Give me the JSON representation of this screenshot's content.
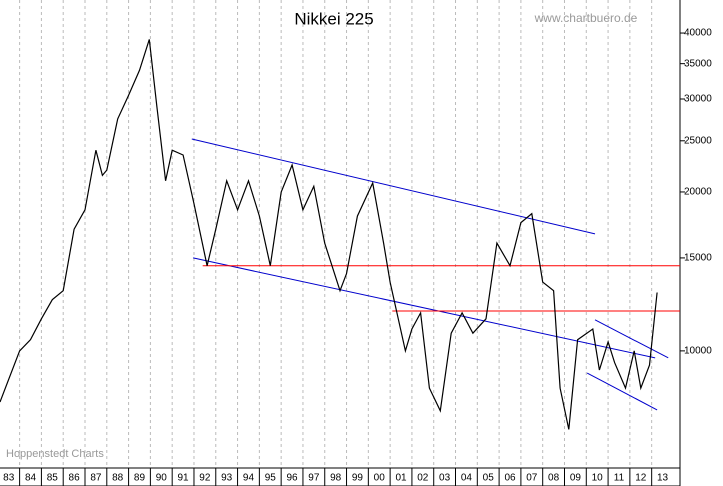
{
  "chart_data": {
    "type": "line",
    "title": "Nikkei 225",
    "source": "www.chartbuero.de",
    "credit": "Hoppenstedt Charts",
    "log_scale": true,
    "grid": true,
    "xlim": [
      1983.1,
      2014.3
    ],
    "ylim": [
      6000,
      46200
    ],
    "yticks": [
      10000,
      15000,
      20000,
      25000,
      30000,
      35000,
      40000
    ],
    "xticks": [
      {
        "value": 1983,
        "label": "83"
      },
      {
        "value": 1984,
        "label": "84"
      },
      {
        "value": 1985,
        "label": "85"
      },
      {
        "value": 1986,
        "label": "86"
      },
      {
        "value": 1987,
        "label": "87"
      },
      {
        "value": 1988,
        "label": "88"
      },
      {
        "value": 1989,
        "label": "89"
      },
      {
        "value": 1990,
        "label": "90"
      },
      {
        "value": 1991,
        "label": "91"
      },
      {
        "value": 1992,
        "label": "92"
      },
      {
        "value": 1993,
        "label": "93"
      },
      {
        "value": 1994,
        "label": "94"
      },
      {
        "value": 1995,
        "label": "95"
      },
      {
        "value": 1996,
        "label": "96"
      },
      {
        "value": 1997,
        "label": "97"
      },
      {
        "value": 1998,
        "label": "98"
      },
      {
        "value": 1999,
        "label": "99"
      },
      {
        "value": 2000,
        "label": "00"
      },
      {
        "value": 2001,
        "label": "01"
      },
      {
        "value": 2002,
        "label": "02"
      },
      {
        "value": 2003,
        "label": "03"
      },
      {
        "value": 2004,
        "label": "04"
      },
      {
        "value": 2005,
        "label": "05"
      },
      {
        "value": 2006,
        "label": "06"
      },
      {
        "value": 2007,
        "label": "07"
      },
      {
        "value": 2008,
        "label": "08"
      },
      {
        "value": 2009,
        "label": "09"
      },
      {
        "value": 2010,
        "label": "10"
      },
      {
        "value": 2011,
        "label": "11"
      },
      {
        "value": 2012,
        "label": "12"
      },
      {
        "value": 2013,
        "label": "13"
      }
    ],
    "series": [
      {
        "color": "#000000",
        "x": [
          1983.1,
          1984.0,
          1984.5,
          1985.0,
          1985.5,
          1986.0,
          1986.5,
          1987.0,
          1987.5,
          1987.8,
          1988.0,
          1988.5,
          1989.0,
          1989.5,
          1989.95,
          1990.3,
          1990.7,
          1991.0,
          1991.5,
          1992.0,
          1992.6,
          1993.0,
          1993.5,
          1994.0,
          1994.5,
          1995.0,
          1995.5,
          1996.0,
          1996.5,
          1997.0,
          1997.5,
          1998.0,
          1998.7,
          1999.0,
          1999.5,
          2000.2,
          2000.7,
          2001.0,
          2001.7,
          2002.0,
          2002.4,
          2002.8,
          2003.3,
          2003.8,
          2004.3,
          2004.8,
          2005.4,
          2005.9,
          2006.5,
          2007.0,
          2007.5,
          2008.0,
          2008.5,
          2008.8,
          2009.2,
          2009.6,
          2010.3,
          2010.6,
          2011.0,
          2011.3,
          2011.8,
          2012.2,
          2012.5,
          2012.9,
          2013.25
        ],
        "values": [
          8000,
          10000,
          10500,
          11500,
          12500,
          13000,
          17000,
          18500,
          24000,
          21500,
          22000,
          27500,
          30500,
          34000,
          38900,
          29000,
          21000,
          24000,
          23500,
          19000,
          14500,
          17000,
          21000,
          18500,
          21000,
          18000,
          14500,
          20000,
          22500,
          18500,
          20500,
          16000,
          13000,
          14000,
          18000,
          20800,
          16000,
          13500,
          10000,
          11000,
          11800,
          8500,
          7700,
          10800,
          11800,
          10800,
          11500,
          16000,
          14500,
          17500,
          18200,
          13500,
          13000,
          8500,
          7100,
          10500,
          11000,
          9200,
          10400,
          9500,
          8500,
          10000,
          8500,
          9400,
          12900
        ]
      }
    ],
    "trendlines": [
      {
        "color": "#0000cc",
        "x": [
          1991.9,
          2010.4
        ],
        "y": [
          25200,
          16660
        ]
      },
      {
        "color": "#0000cc",
        "x": [
          1991.96,
          2013.16
        ],
        "y": [
          15000,
          9700
        ]
      },
      {
        "color": "#ff0000",
        "x": [
          1992.4,
          2014.3
        ],
        "y": [
          14500,
          14500
        ]
      },
      {
        "color": "#ff0000",
        "x": [
          2001.1,
          2014.3
        ],
        "y": [
          11900,
          11900
        ]
      },
      {
        "color": "#0000cc",
        "x": [
          2010.4,
          2013.76
        ],
        "y": [
          11450,
          9700
        ]
      },
      {
        "color": "#0000cc",
        "x": [
          2010.04,
          2013.25
        ],
        "y": [
          9080,
          7730
        ]
      }
    ]
  }
}
